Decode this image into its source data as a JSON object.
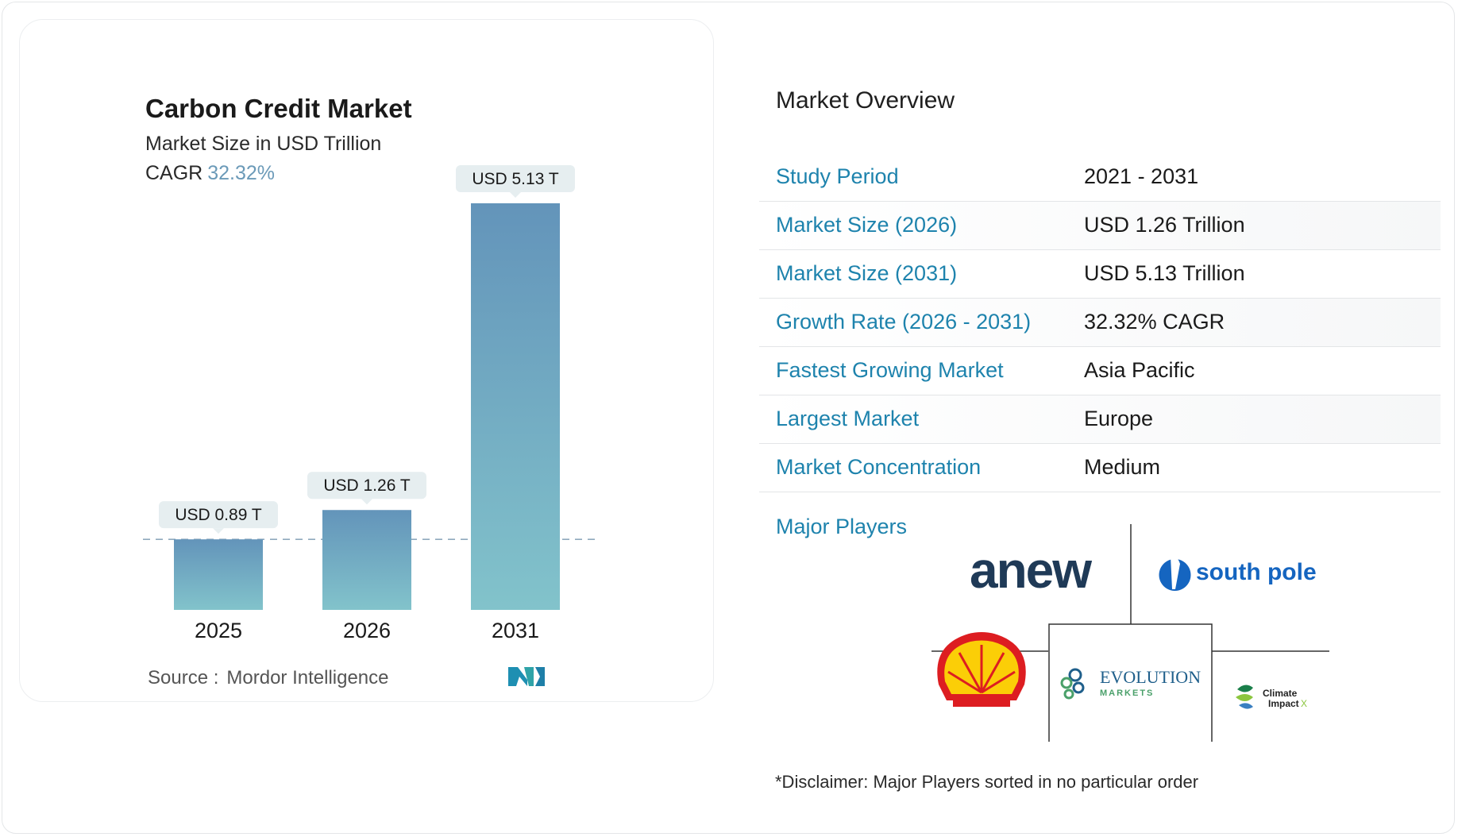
{
  "chart_data": {
    "type": "bar",
    "title": "Carbon Credit Market",
    "subtitle": "Market Size in USD Trillion",
    "cagr_label": "CAGR",
    "cagr_value": "32.32%",
    "categories": [
      "2025",
      "2026",
      "2031"
    ],
    "values": [
      0.89,
      1.26,
      5.13
    ],
    "value_labels": [
      "USD 0.89 T",
      "USD 1.26 T",
      "USD 5.13 T"
    ],
    "reference_line_value": 0.89,
    "colors": {
      "bar_top": "#6394ba",
      "bar_bottom": "#82c3cb",
      "label_bg": "#e6eef0",
      "dash": "#8fa9bd"
    }
  },
  "source": {
    "label": "Source :",
    "value": "Mordor Intelligence"
  },
  "brand_logo": "MI",
  "overview": {
    "title": "Market Overview",
    "rows": [
      {
        "label": "Study Period",
        "value": "2021 - 2031"
      },
      {
        "label": "Market Size (2026)",
        "value": "USD 1.26 Trillion"
      },
      {
        "label": "Market Size (2031)",
        "value": "USD 5.13 Trillion"
      },
      {
        "label": "Growth Rate (2026 - 2031)",
        "value": "32.32% CAGR"
      },
      {
        "label": "Fastest Growing Market",
        "value": "Asia Pacific"
      },
      {
        "label": "Largest Market",
        "value": "Europe"
      },
      {
        "label": "Market Concentration",
        "value": "Medium"
      }
    ]
  },
  "players": {
    "label": "Major Players",
    "logos": {
      "anew": "anew",
      "south_pole": "south pole",
      "evolution_main": "EVOLUTION",
      "evolution_sub": "MARKETS",
      "climate_1": "Climate",
      "climate_2": "Impact",
      "climate_x": "X"
    }
  },
  "disclaimer": "*Disclaimer: Major Players sorted in no particular order"
}
